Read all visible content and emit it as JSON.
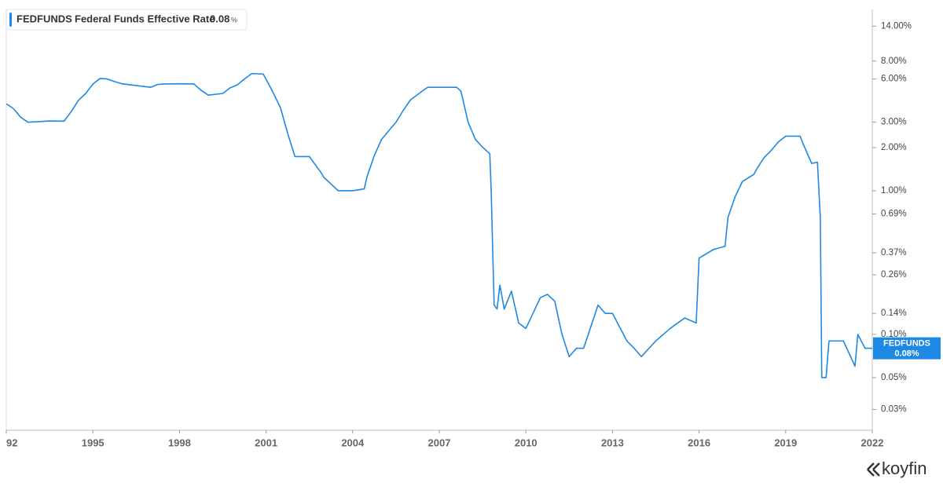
{
  "chart_data": {
    "type": "line",
    "title": "FEDFUNDS",
    "subtitle": "Federal Funds Effective Rate",
    "legend_value": "0.08",
    "legend_unit": "%",
    "last_label": "0.08%",
    "brand": "koyfin",
    "log_scale": true,
    "grid": false,
    "xlim": [
      1992,
      2022
    ],
    "xticks": [
      {
        "value": 1992,
        "label": "92"
      },
      1995,
      1998,
      2001,
      2004,
      2007,
      2010,
      2013,
      2016,
      2019,
      2022
    ],
    "ylim": [
      0.0215,
      18.3
    ],
    "yticks": [
      {
        "value": 14,
        "label": "14.00%"
      },
      {
        "value": 8,
        "label": "8.00%"
      },
      {
        "value": 6,
        "label": "6.00%"
      },
      {
        "value": 3,
        "label": "3.00%"
      },
      {
        "value": 2,
        "label": "2.00%"
      },
      {
        "value": 1,
        "label": "1.00%"
      },
      {
        "value": 0.69,
        "label": "0.69%"
      },
      {
        "value": 0.37,
        "label": "0.37%"
      },
      {
        "value": 0.26,
        "label": "0.26%"
      },
      {
        "value": 0.14,
        "label": "0.14%"
      },
      {
        "value": 0.1,
        "label": "0.10%"
      },
      {
        "value": 0.05,
        "label": "0.05%"
      },
      {
        "value": 0.03,
        "label": "0.03%"
      }
    ],
    "x": [
      1992.0,
      1992.25,
      1992.5,
      1992.75,
      1993.0,
      1993.5,
      1994.0,
      1994.25,
      1994.5,
      1994.75,
      1995.0,
      1995.25,
      1995.5,
      1995.75,
      1996.0,
      1996.5,
      1997.0,
      1997.25,
      1997.5,
      1998.0,
      1998.5,
      1998.75,
      1999.0,
      1999.5,
      1999.75,
      2000.0,
      2000.25,
      2000.5,
      2000.9,
      2001.0,
      2001.25,
      2001.5,
      2001.75,
      2002.0,
      2002.5,
      2002.9,
      2003.0,
      2003.5,
      2004.0,
      2004.4,
      2004.5,
      2004.75,
      2005.0,
      2005.5,
      2005.75,
      2006.0,
      2006.5,
      2006.6,
      2007.6,
      2007.75,
      2008.0,
      2008.25,
      2008.5,
      2008.75,
      2008.8,
      2008.9,
      2009.0,
      2009.1,
      2009.25,
      2009.5,
      2009.75,
      2010.0,
      2010.5,
      2010.75,
      2011.0,
      2011.25,
      2011.5,
      2011.75,
      2012.0,
      2012.5,
      2012.75,
      2013.0,
      2013.5,
      2013.75,
      2014.0,
      2014.5,
      2015.0,
      2015.5,
      2015.9,
      2016.0,
      2016.5,
      2016.9,
      2017.0,
      2017.25,
      2017.5,
      2017.9,
      2018.0,
      2018.25,
      2018.5,
      2018.75,
      2019.0,
      2019.5,
      2019.6,
      2019.9,
      2020.1,
      2020.2,
      2020.25,
      2020.4,
      2020.5,
      2020.75,
      2021.0,
      2021.25,
      2021.4,
      2021.5,
      2021.75,
      2022.0
    ],
    "series": [
      {
        "name": "FEDFUNDS",
        "color": "#1e88e5",
        "values": [
          4.03,
          3.73,
          3.25,
          3.0,
          3.02,
          3.06,
          3.05,
          3.56,
          4.26,
          4.76,
          5.53,
          6.05,
          6.0,
          5.76,
          5.56,
          5.4,
          5.25,
          5.5,
          5.54,
          5.56,
          5.54,
          5.0,
          4.63,
          4.76,
          5.2,
          5.45,
          6.0,
          6.54,
          6.5,
          5.98,
          4.8,
          3.77,
          2.5,
          1.73,
          1.73,
          1.34,
          1.24,
          1.0,
          1.0,
          1.03,
          1.26,
          1.76,
          2.28,
          3.0,
          3.62,
          4.29,
          5.09,
          5.25,
          5.25,
          4.94,
          3.0,
          2.28,
          2.01,
          1.81,
          0.97,
          0.16,
          0.15,
          0.22,
          0.15,
          0.2,
          0.12,
          0.11,
          0.18,
          0.19,
          0.17,
          0.1,
          0.07,
          0.08,
          0.08,
          0.16,
          0.14,
          0.14,
          0.09,
          0.08,
          0.07,
          0.09,
          0.11,
          0.13,
          0.12,
          0.34,
          0.39,
          0.41,
          0.65,
          0.91,
          1.16,
          1.3,
          1.42,
          1.7,
          1.91,
          2.19,
          2.4,
          2.4,
          2.13,
          1.55,
          1.58,
          0.65,
          0.05,
          0.05,
          0.09,
          0.09,
          0.09,
          0.07,
          0.06,
          0.1,
          0.08,
          0.08
        ]
      }
    ]
  }
}
